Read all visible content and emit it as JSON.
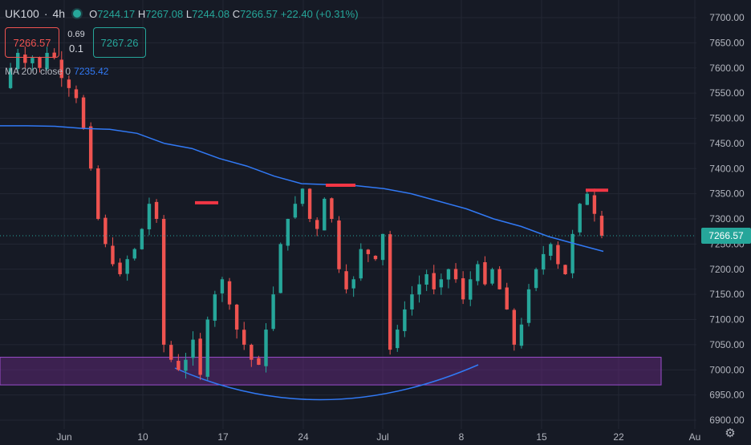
{
  "header": {
    "symbol": "UK100",
    "separator": "·",
    "timeframe": "4h",
    "open_label": "O",
    "open": "7244.17",
    "high_label": "H",
    "high": "7267.08",
    "low_label": "L",
    "low": "7244.08",
    "close_label": "C",
    "close": "7266.57",
    "change": "+22.40 (+0.31%)"
  },
  "trade": {
    "sell_price": "7266.57",
    "spread_top": "0.69",
    "spread_bottom": "0.1",
    "buy_price": "7267.26"
  },
  "indicator": {
    "label": "MA 200 close 0",
    "value": "7235.42"
  },
  "last_price_label": "7266.57",
  "colors": {
    "background": "#161a25",
    "bull": "#26a69a",
    "bear": "#ef5350",
    "ma_line": "#3179f5",
    "zone": "#6b2a86",
    "marker": "#f23645"
  },
  "chart_data": {
    "type": "candlestick",
    "y_ticks": [
      "7700.00",
      "7650.00",
      "7600.00",
      "7550.00",
      "7500.00",
      "7450.00",
      "7400.00",
      "7350.00",
      "7300.00",
      "7250.00",
      "7200.00",
      "7150.00",
      "7100.00",
      "7050.00",
      "7000.00",
      "6950.00",
      "6900.00"
    ],
    "ylim": [
      6900,
      7700
    ],
    "x_ticks": [
      "Jun",
      "10",
      "17",
      "24",
      "Jul",
      "8",
      "15",
      "22",
      "Au"
    ],
    "support_zone": [
      6970,
      7025
    ],
    "horizontal_markers": [
      7332,
      7367,
      7357
    ],
    "close_path": [
      7560,
      7600,
      7630,
      7610,
      7620,
      7600,
      7630,
      7620,
      7580,
      7560,
      7540,
      7480,
      7400,
      7300,
      7250,
      7210,
      7190,
      7220,
      7240,
      7280,
      7330,
      7300,
      7050,
      7020,
      7000,
      7020,
      7060,
      6990,
      7100,
      7150,
      7180,
      7130,
      7080,
      7050,
      7020,
      7010,
      7080,
      7150,
      7250,
      7300,
      7330,
      7360,
      7300,
      7280,
      7340,
      7300,
      7200,
      7160,
      7180,
      7240,
      7230,
      7220,
      7270,
      7040,
      7080,
      7120,
      7150,
      7170,
      7190,
      7160,
      7180,
      7200,
      7180,
      7140,
      7180,
      7210,
      7170,
      7200,
      7160,
      7120,
      7050,
      7090,
      7160,
      7200,
      7230,
      7250,
      7210,
      7190,
      7270,
      7330,
      7350,
      7310,
      7266.57
    ],
    "ma200": [
      7485,
      7485,
      7484,
      7480,
      7478,
      7470,
      7450,
      7440,
      7420,
      7405,
      7385,
      7370,
      7368,
      7366,
      7360,
      7350,
      7335,
      7320,
      7300,
      7285,
      7265,
      7250,
      7235.42
    ]
  }
}
